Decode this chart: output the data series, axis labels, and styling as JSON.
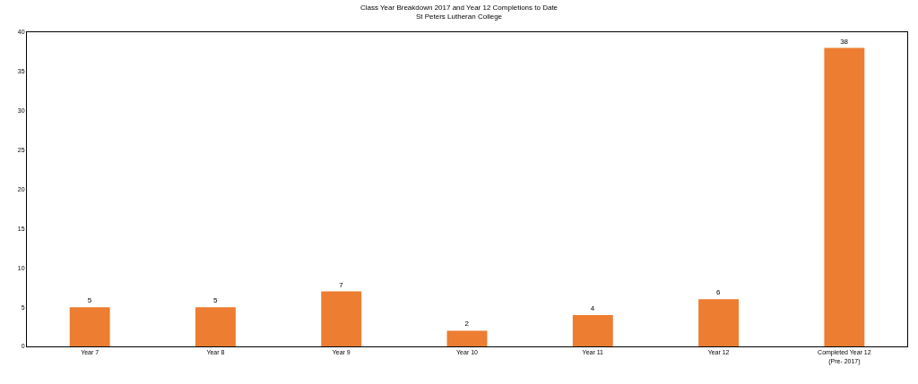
{
  "chart_data": {
    "type": "bar",
    "title": "Class Year Breakdown 2017 and Year 12 Completions to Date",
    "subtitle": "St Peters Lutheran College",
    "categories": [
      "Year 7",
      "Year 8",
      "Year 9",
      "Year 10",
      "Year 11",
      "Year 12",
      "Completed Year 12\n(Pre- 2017)"
    ],
    "values": [
      5,
      5,
      7,
      2,
      4,
      6,
      38
    ],
    "color": "#ed7d31",
    "ylim": [
      0,
      40
    ],
    "yticks": [
      0,
      5,
      10,
      15,
      20,
      25,
      30,
      35,
      40
    ],
    "legend": false,
    "data_labels": true
  }
}
